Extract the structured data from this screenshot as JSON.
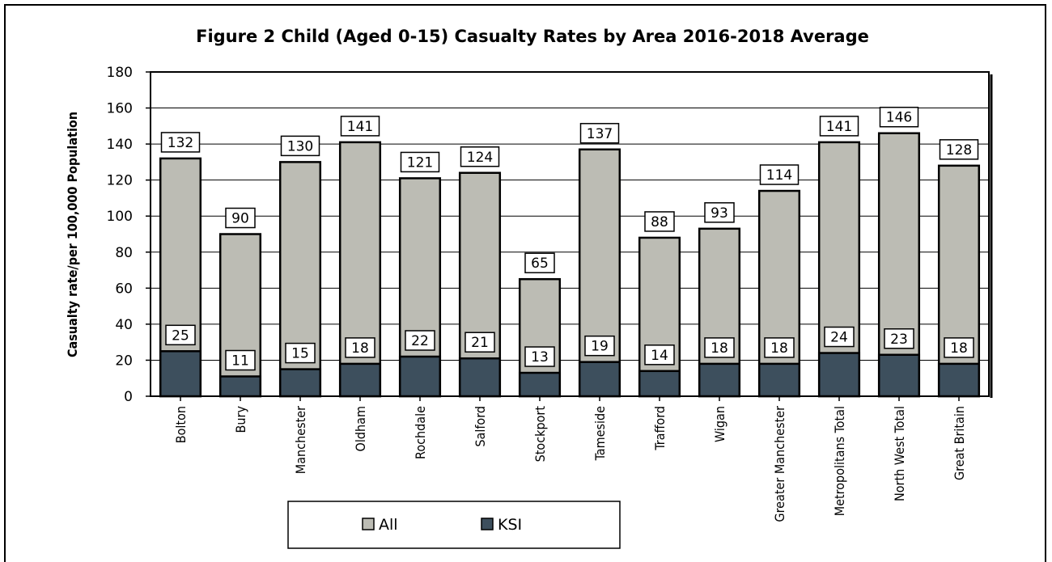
{
  "chart_data": {
    "type": "bar",
    "title": "Figure 2 Child (Aged 0-15) Casualty Rates by Area 2016-2018 Average",
    "ylabel": "Casualty rate/per 100,000 Population",
    "xlabel": "",
    "ylim": [
      0,
      180
    ],
    "yticks": [
      0,
      20,
      40,
      60,
      80,
      100,
      120,
      140,
      160,
      180
    ],
    "grid": true,
    "legend_position": "bottom",
    "bar_mode": "overlay",
    "categories": [
      "Bolton",
      "Bury",
      "Manchester",
      "Oldham",
      "Rochdale",
      "Salford",
      "Stockport",
      "Tameside",
      "Trafford",
      "Wigan",
      "Greater Manchester",
      "Metropolitans Total",
      "North West Total",
      "Great Britain"
    ],
    "series": [
      {
        "name": "All",
        "color": "#bcbcb4",
        "values": [
          132,
          90,
          130,
          141,
          121,
          124,
          65,
          137,
          88,
          93,
          114,
          141,
          146,
          128
        ]
      },
      {
        "name": "KSI",
        "color": "#3d4f5d",
        "values": [
          25,
          11,
          15,
          18,
          22,
          21,
          13,
          19,
          14,
          18,
          18,
          24,
          23,
          18
        ]
      }
    ]
  }
}
